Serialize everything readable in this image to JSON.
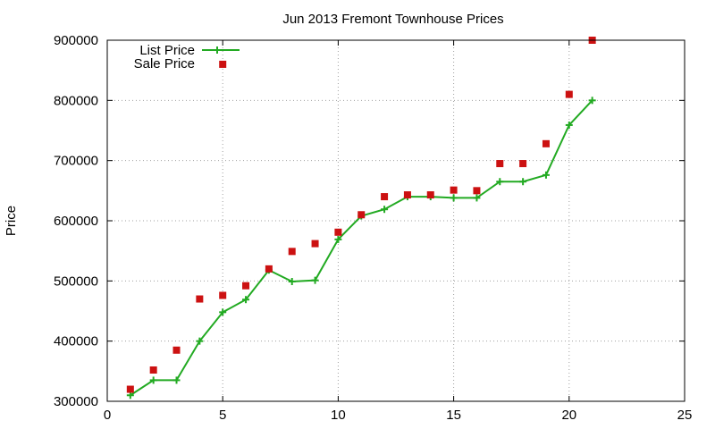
{
  "chart_data": {
    "type": "line",
    "title": "Jun 2013 Fremont Townhouse Prices",
    "xlabel": "",
    "ylabel": "Price",
    "xlim": [
      0,
      25
    ],
    "ylim": [
      300000,
      900000
    ],
    "x_ticks": [
      0,
      5,
      10,
      15,
      20,
      25
    ],
    "y_ticks": [
      300000,
      400000,
      500000,
      600000,
      700000,
      800000,
      900000
    ],
    "grid": true,
    "legend_position": "top-left",
    "series": [
      {
        "name": "List Price",
        "style": "line+cross",
        "color": "#22aa22",
        "x": [
          1,
          2,
          3,
          4,
          5,
          6,
          7,
          8,
          9,
          10,
          11,
          12,
          13,
          14,
          15,
          16,
          17,
          18,
          19,
          20,
          21
        ],
        "values": [
          310000,
          335000,
          335000,
          400000,
          448000,
          469000,
          518000,
          499000,
          501000,
          569000,
          608000,
          619000,
          640000,
          640000,
          638000,
          638000,
          665000,
          665000,
          676000,
          759000,
          800000
        ]
      },
      {
        "name": "Sale Price",
        "style": "square",
        "color": "#cc1111",
        "x": [
          1,
          2,
          3,
          4,
          5,
          6,
          7,
          8,
          9,
          10,
          11,
          12,
          13,
          14,
          15,
          16,
          17,
          18,
          19,
          20,
          21,
          5
        ],
        "values": [
          320000,
          352000,
          385000,
          470000,
          476000,
          492000,
          520000,
          549000,
          562000,
          581000,
          610000,
          640000,
          643000,
          643000,
          651000,
          650000,
          695000,
          695000,
          728000,
          810000,
          900000,
          860000
        ]
      }
    ]
  }
}
